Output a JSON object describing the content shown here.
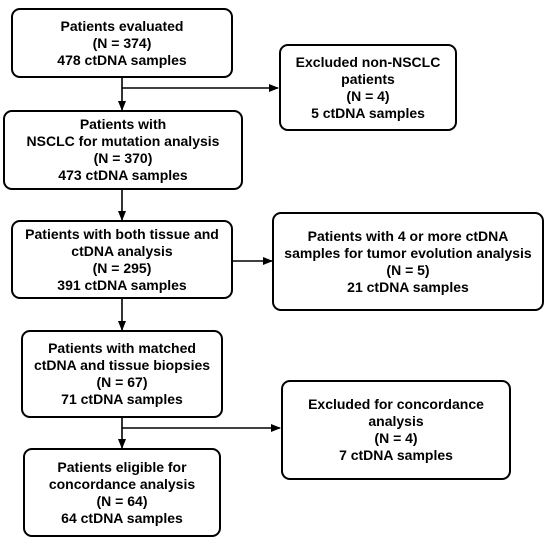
{
  "boxes": {
    "evaluated": [
      "Patients evaluated",
      "(N = 374)",
      "478 ctDNA samples"
    ],
    "excluded_non_nsclc": [
      "Excluded non-NSCLC",
      "patients",
      "(N = 4)",
      "5 ctDNA samples"
    ],
    "nsclc": [
      "Patients with",
      "NSCLC for mutation analysis",
      "(N = 370)",
      "473 ctDNA samples"
    ],
    "tissue_ctdna": [
      "Patients with both tissue and",
      "ctDNA analysis",
      "(N = 295)",
      "391 ctDNA samples"
    ],
    "evolution": [
      "Patients with 4 or more ctDNA",
      "samples for tumor evolution analysis",
      "(N = 5)",
      "21 ctDNA samples"
    ],
    "matched": [
      "Patients with matched",
      "ctDNA and tissue biopsies",
      "(N = 67)",
      "71 ctDNA samples"
    ],
    "excluded_concordance": [
      "Excluded for concordance",
      "analysis",
      "(N = 4)",
      "7 ctDNA samples"
    ],
    "eligible": [
      "Patients eligible for",
      "concordance analysis",
      "(N = 64)",
      "64 ctDNA samples"
    ]
  }
}
